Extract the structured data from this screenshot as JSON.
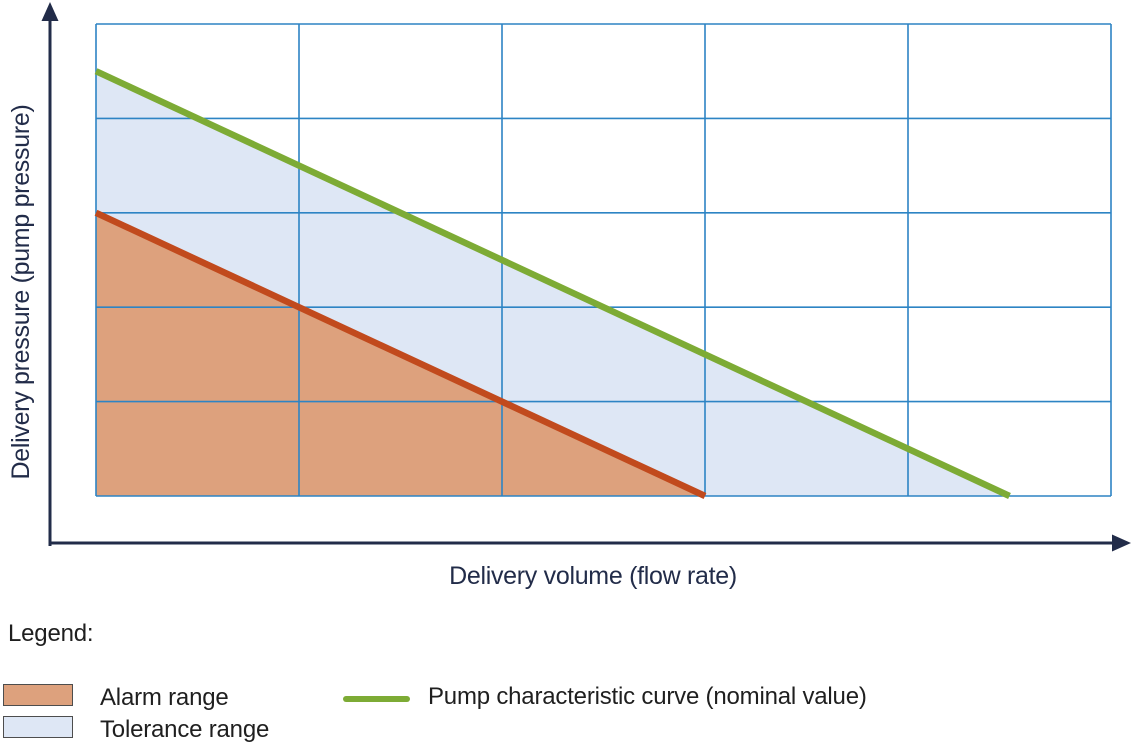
{
  "figure": {
    "x_axis_label": "Delivery volume (flow rate)",
    "y_axis_label": "Delivery pressure (pump pressure)"
  },
  "legend": {
    "title": "Legend:",
    "items": [
      {
        "label": "Alarm range",
        "swatch": "filled-area",
        "color": "#dda17d"
      },
      {
        "label": "Tolerance range",
        "swatch": "filled-area",
        "color": "#dee7f5"
      },
      {
        "label": "Pump characteristic curve (nominal value)",
        "swatch": "line",
        "color": "#7dab35"
      }
    ]
  },
  "colors": {
    "axis": "#222c49",
    "grid": "#2d84c4",
    "pump_curve": "#7dab35",
    "alarm_line": "#c14a1d",
    "alarm_fill": "#dda17d",
    "tolerance_fill": "#dee7f5",
    "legend_text": "#1f1f1f",
    "swatch_border": "#4d4d4d"
  },
  "chart_data": {
    "type": "area",
    "title": "",
    "xlabel": "Delivery volume (flow rate)",
    "ylabel": "Delivery pressure (pump pressure)",
    "xlim": [
      0,
      5
    ],
    "ylim": [
      0,
      5
    ],
    "grid": true,
    "grid_divisions": {
      "x": 5,
      "y": 5
    },
    "axis_tick_labels": "none",
    "legend_position": "bottom-left",
    "regions": [
      {
        "id": "tolerance-range",
        "name": "Tolerance range",
        "color": "#dee7f5",
        "polygon": [
          [
            0,
            4.5
          ],
          [
            4.5,
            0
          ],
          [
            0,
            0
          ]
        ]
      },
      {
        "id": "alarm-range",
        "name": "Alarm range",
        "color": "#dda17d",
        "polygon": [
          [
            0,
            3
          ],
          [
            3,
            0
          ],
          [
            0,
            0
          ]
        ]
      }
    ],
    "series": [
      {
        "id": "alarm-limit",
        "name": "Alarm range boundary",
        "type": "line",
        "color": "#c14a1d",
        "points": [
          [
            0,
            3
          ],
          [
            3,
            0
          ]
        ]
      },
      {
        "id": "pump-curve",
        "name": "Pump characteristic curve (nominal value)",
        "type": "line",
        "color": "#7dab35",
        "points": [
          [
            0,
            4.5
          ],
          [
            4.5,
            0
          ]
        ]
      }
    ]
  }
}
